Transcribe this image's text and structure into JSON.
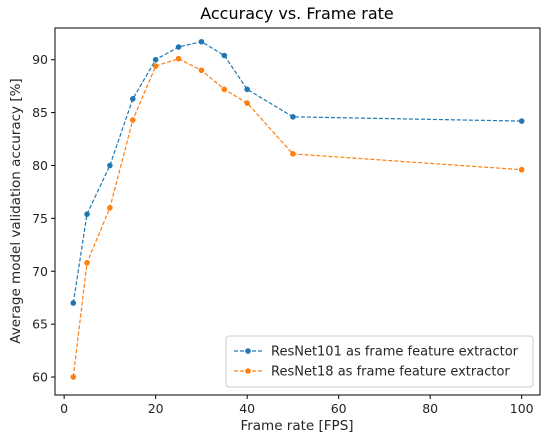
{
  "chart_data": {
    "type": "line",
    "title": "Accuracy vs. Frame rate",
    "xlabel": "Frame rate [FPS]",
    "ylabel": "Average model validation accuracy [%]",
    "xlim": [
      -2,
      104
    ],
    "ylim": [
      58.3,
      93.0
    ],
    "xticks": [
      0,
      20,
      40,
      60,
      80,
      100
    ],
    "yticks": [
      60,
      65,
      70,
      75,
      80,
      85,
      90
    ],
    "grid": false,
    "legend_position": "lower-right",
    "x": [
      2,
      5,
      10,
      15,
      20,
      25,
      30,
      35,
      40,
      50,
      100
    ],
    "series": [
      {
        "name": "ResNet101 as frame feature extractor",
        "color": "#1f77b4",
        "values": [
          67.0,
          75.4,
          80.0,
          86.3,
          90.0,
          91.2,
          91.7,
          90.4,
          87.2,
          84.6,
          84.2
        ]
      },
      {
        "name": "ResNet18 as frame feature extractor",
        "color": "#ff7f0e",
        "values": [
          60.0,
          70.8,
          76.0,
          84.3,
          89.4,
          90.1,
          89.0,
          87.2,
          85.9,
          81.1,
          79.6
        ]
      }
    ]
  }
}
